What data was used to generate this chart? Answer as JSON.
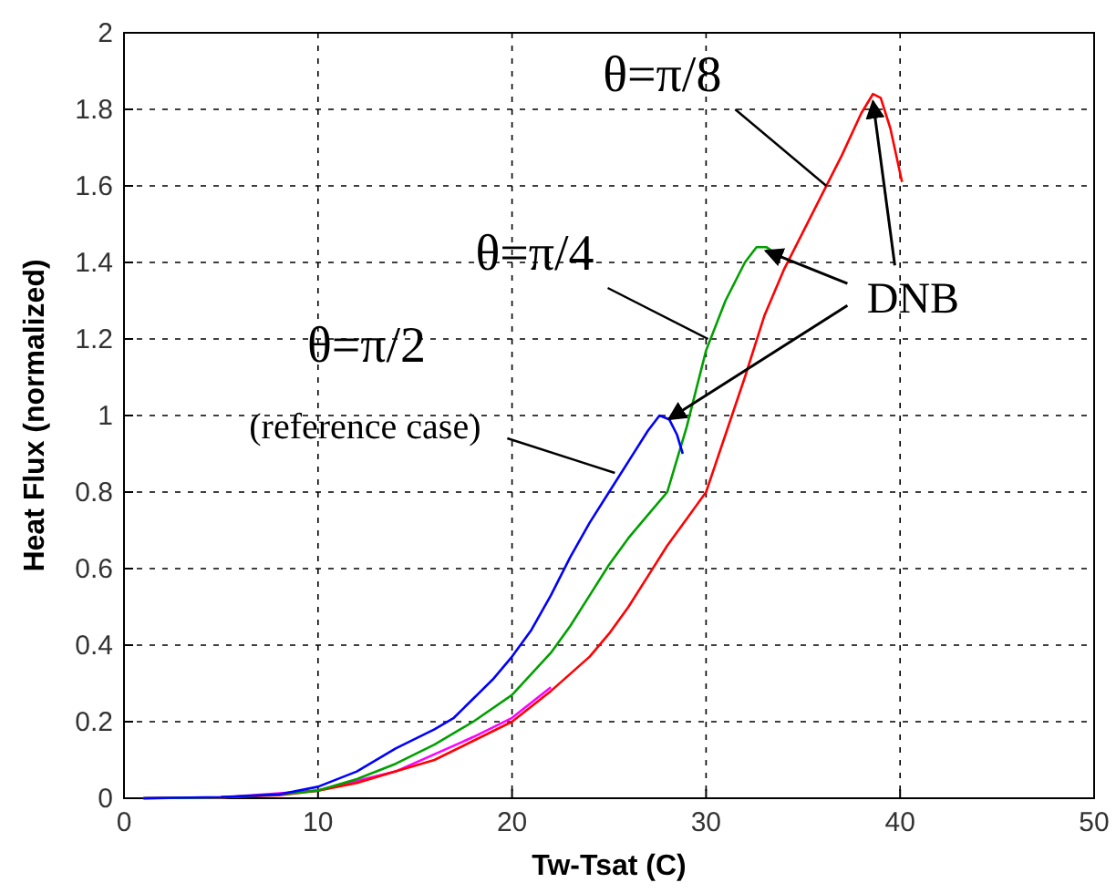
{
  "chart_data": {
    "type": "line",
    "xlabel": "Tw-Tsat (C)",
    "ylabel": "Heat Flux (normalized)",
    "xlim": [
      0,
      50
    ],
    "xticks": [
      0,
      10,
      20,
      30,
      40,
      50
    ],
    "ylim": [
      0,
      2
    ],
    "yticks": [
      0,
      0.2,
      0.4,
      0.6,
      0.8,
      1,
      1.2,
      1.4,
      1.6,
      1.8,
      2
    ],
    "grid": true,
    "series": [
      {
        "color": "#ff00ff",
        "x": [
          1,
          5,
          10,
          14,
          18,
          20,
          22
        ],
        "values": [
          0,
          0.002,
          0.02,
          0.07,
          0.16,
          0.21,
          0.29
        ]
      },
      {
        "color": "#ff0000",
        "x": [
          1,
          5,
          8,
          10,
          12,
          14,
          16,
          18,
          20,
          22,
          24,
          25,
          26,
          27,
          28,
          29,
          30,
          31,
          32,
          33,
          34,
          35,
          36,
          37,
          38,
          38.6,
          39,
          39.5,
          40.1
        ],
        "values": [
          0,
          0.002,
          0.008,
          0.02,
          0.04,
          0.07,
          0.1,
          0.15,
          0.2,
          0.28,
          0.37,
          0.43,
          0.5,
          0.58,
          0.66,
          0.73,
          0.8,
          0.95,
          1.1,
          1.26,
          1.38,
          1.48,
          1.58,
          1.68,
          1.79,
          1.84,
          1.83,
          1.75,
          1.61
        ]
      },
      {
        "color": "#00a000",
        "x": [
          1,
          5,
          8,
          10,
          12,
          14,
          16,
          18,
          20,
          22,
          23,
          24,
          25,
          26,
          27,
          28,
          29,
          30,
          31,
          32,
          32.6,
          33.1,
          33.4
        ],
        "values": [
          0,
          0.002,
          0.01,
          0.02,
          0.05,
          0.09,
          0.14,
          0.2,
          0.27,
          0.38,
          0.45,
          0.53,
          0.61,
          0.68,
          0.74,
          0.8,
          0.97,
          1.17,
          1.3,
          1.4,
          1.44,
          1.44,
          1.43
        ]
      },
      {
        "color": "#0000ff",
        "x": [
          1,
          5,
          8,
          10,
          12,
          14,
          16,
          17,
          18,
          19,
          20,
          21,
          22,
          23,
          24,
          25,
          26,
          27,
          27.6,
          28.1,
          28.5,
          28.8
        ],
        "values": [
          0,
          0.003,
          0.01,
          0.03,
          0.07,
          0.13,
          0.18,
          0.21,
          0.26,
          0.31,
          0.37,
          0.44,
          0.53,
          0.63,
          0.72,
          0.8,
          0.88,
          0.96,
          1.0,
          0.99,
          0.95,
          0.9
        ]
      }
    ],
    "annotations": [
      {
        "text": "θ=π/8",
        "x": 36.2,
        "y": 1.6
      },
      {
        "text": "θ=π/4",
        "x": 30.1,
        "y": 1.2
      },
      "θ=π/2",
      {
        "text": "(reference case)",
        "x": 25.3,
        "y": 0.85
      },
      {
        "text": "DNB",
        "x": 38.6,
        "y": 1.84
      }
    ]
  }
}
